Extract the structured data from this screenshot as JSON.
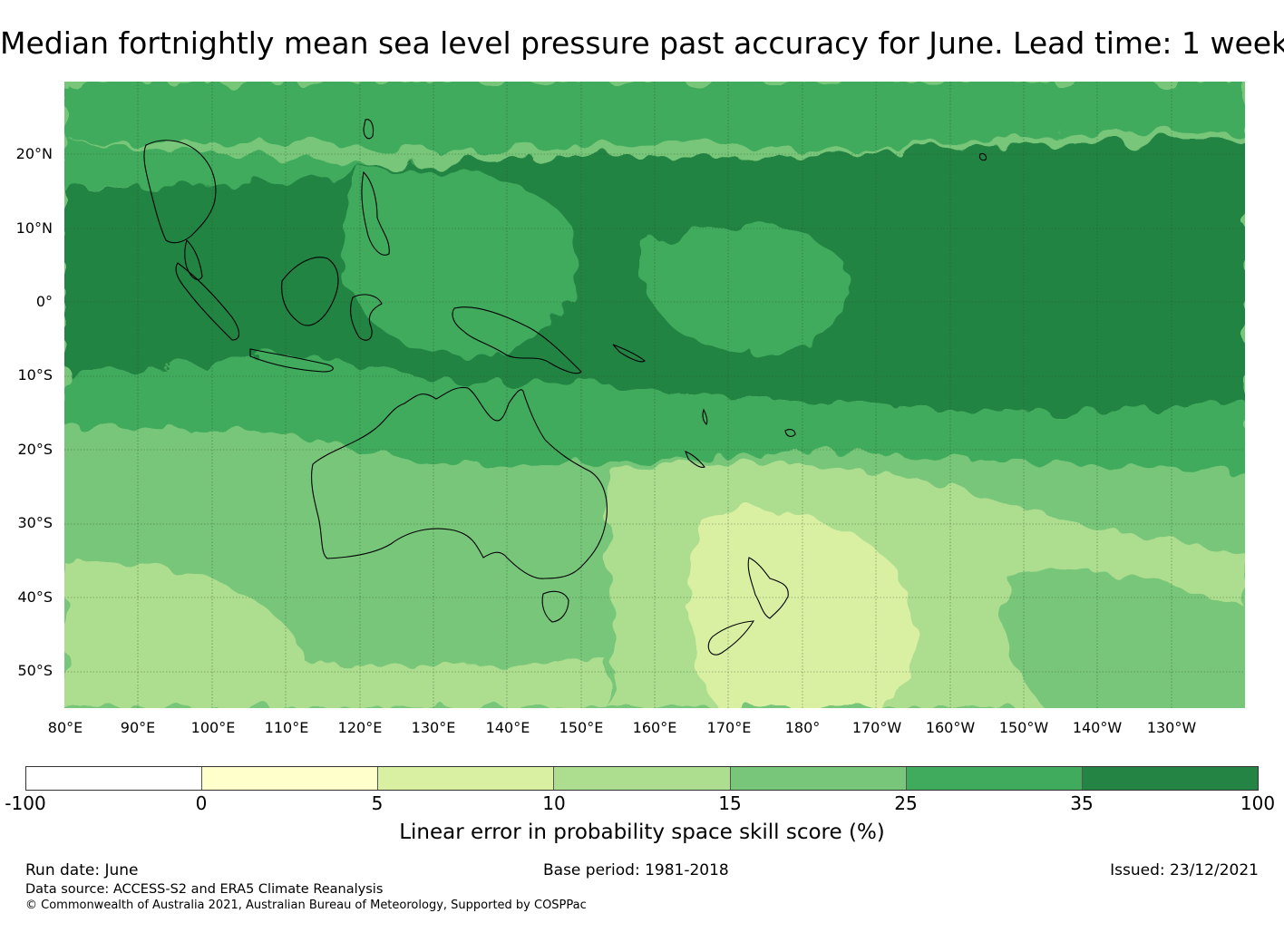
{
  "title": "Median fortnightly mean sea level pressure past accuracy for June. Lead time: 1 week",
  "map": {
    "lat_labels": [
      "20°N",
      "10°N",
      "0°",
      "10°S",
      "20°S",
      "30°S",
      "40°S",
      "50°S"
    ],
    "lon_labels": [
      "80°E",
      "90°E",
      "100°E",
      "110°E",
      "120°E",
      "130°E",
      "140°E",
      "150°E",
      "160°E",
      "170°E",
      "180°",
      "170°W",
      "160°W",
      "150°W",
      "140°W",
      "130°W"
    ],
    "lat_range": [
      -55,
      30
    ],
    "lon_range": [
      80,
      240
    ]
  },
  "colorbar": {
    "label": "Linear error in probability space skill score (%)",
    "ticks": [
      "-100",
      "0",
      "5",
      "10",
      "15",
      "25",
      "35",
      "100"
    ],
    "colors": [
      "#ffffff",
      "#ffffcc",
      "#d9f0a3",
      "#addd8e",
      "#78c679",
      "#41ab5d",
      "#238443"
    ]
  },
  "footer": {
    "run_date": "Run date: June",
    "base_period": "Base period: 1981-2018",
    "issued": "Issued: 23/12/2021",
    "source": "Data source: ACCESS-S2 and ERA5 Climate Reanalysis",
    "copyright": "© Commonwealth of Australia 2021, Australian Bureau of Meteorology, Supported by COSPPac"
  }
}
